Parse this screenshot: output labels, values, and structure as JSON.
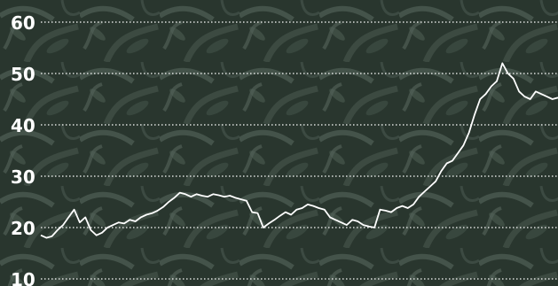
{
  "chart_data": {
    "type": "line",
    "title": "",
    "xlabel": "",
    "ylabel": "",
    "ylim": [
      10,
      60
    ],
    "yticks": [
      10,
      20,
      30,
      40,
      50,
      60
    ],
    "grid": true,
    "grid_style": "dotted",
    "background": "photographic texture of green leaves (dark tint)",
    "colors": {
      "line": "#ffffff",
      "grid": "#ffffff",
      "background": "#2c3a32"
    },
    "series": [
      {
        "values": [
          18.5,
          18,
          18.3,
          19.5,
          20.5,
          22,
          23.5,
          21,
          22,
          19.5,
          18.5,
          19,
          20,
          20.5,
          21,
          20.8,
          21.5,
          21.2,
          22,
          22.5,
          22.8,
          23.3,
          24,
          25,
          25.8,
          26.8,
          26.5,
          26,
          26.5,
          26.2,
          26,
          26.5,
          26.3,
          26,
          26.2,
          25.8,
          25.5,
          25.2,
          23,
          22.8,
          20,
          20.8,
          21.5,
          22.3,
          23,
          22.5,
          23.5,
          23.8,
          24.5,
          24.2,
          23.8,
          23.5,
          22,
          21.5,
          21,
          20.5,
          21.5,
          21.2,
          20.5,
          20.2,
          20,
          23.5,
          23.3,
          23,
          23.8,
          24.2,
          23.8,
          24.5,
          26,
          27,
          28,
          29,
          31,
          32.5,
          33,
          34.5,
          36,
          38.5,
          42,
          45,
          46,
          47.5,
          48.5,
          52,
          50,
          49,
          46.5,
          45.5,
          45,
          46.5,
          46,
          45.5,
          45,
          45.3
        ]
      }
    ]
  }
}
